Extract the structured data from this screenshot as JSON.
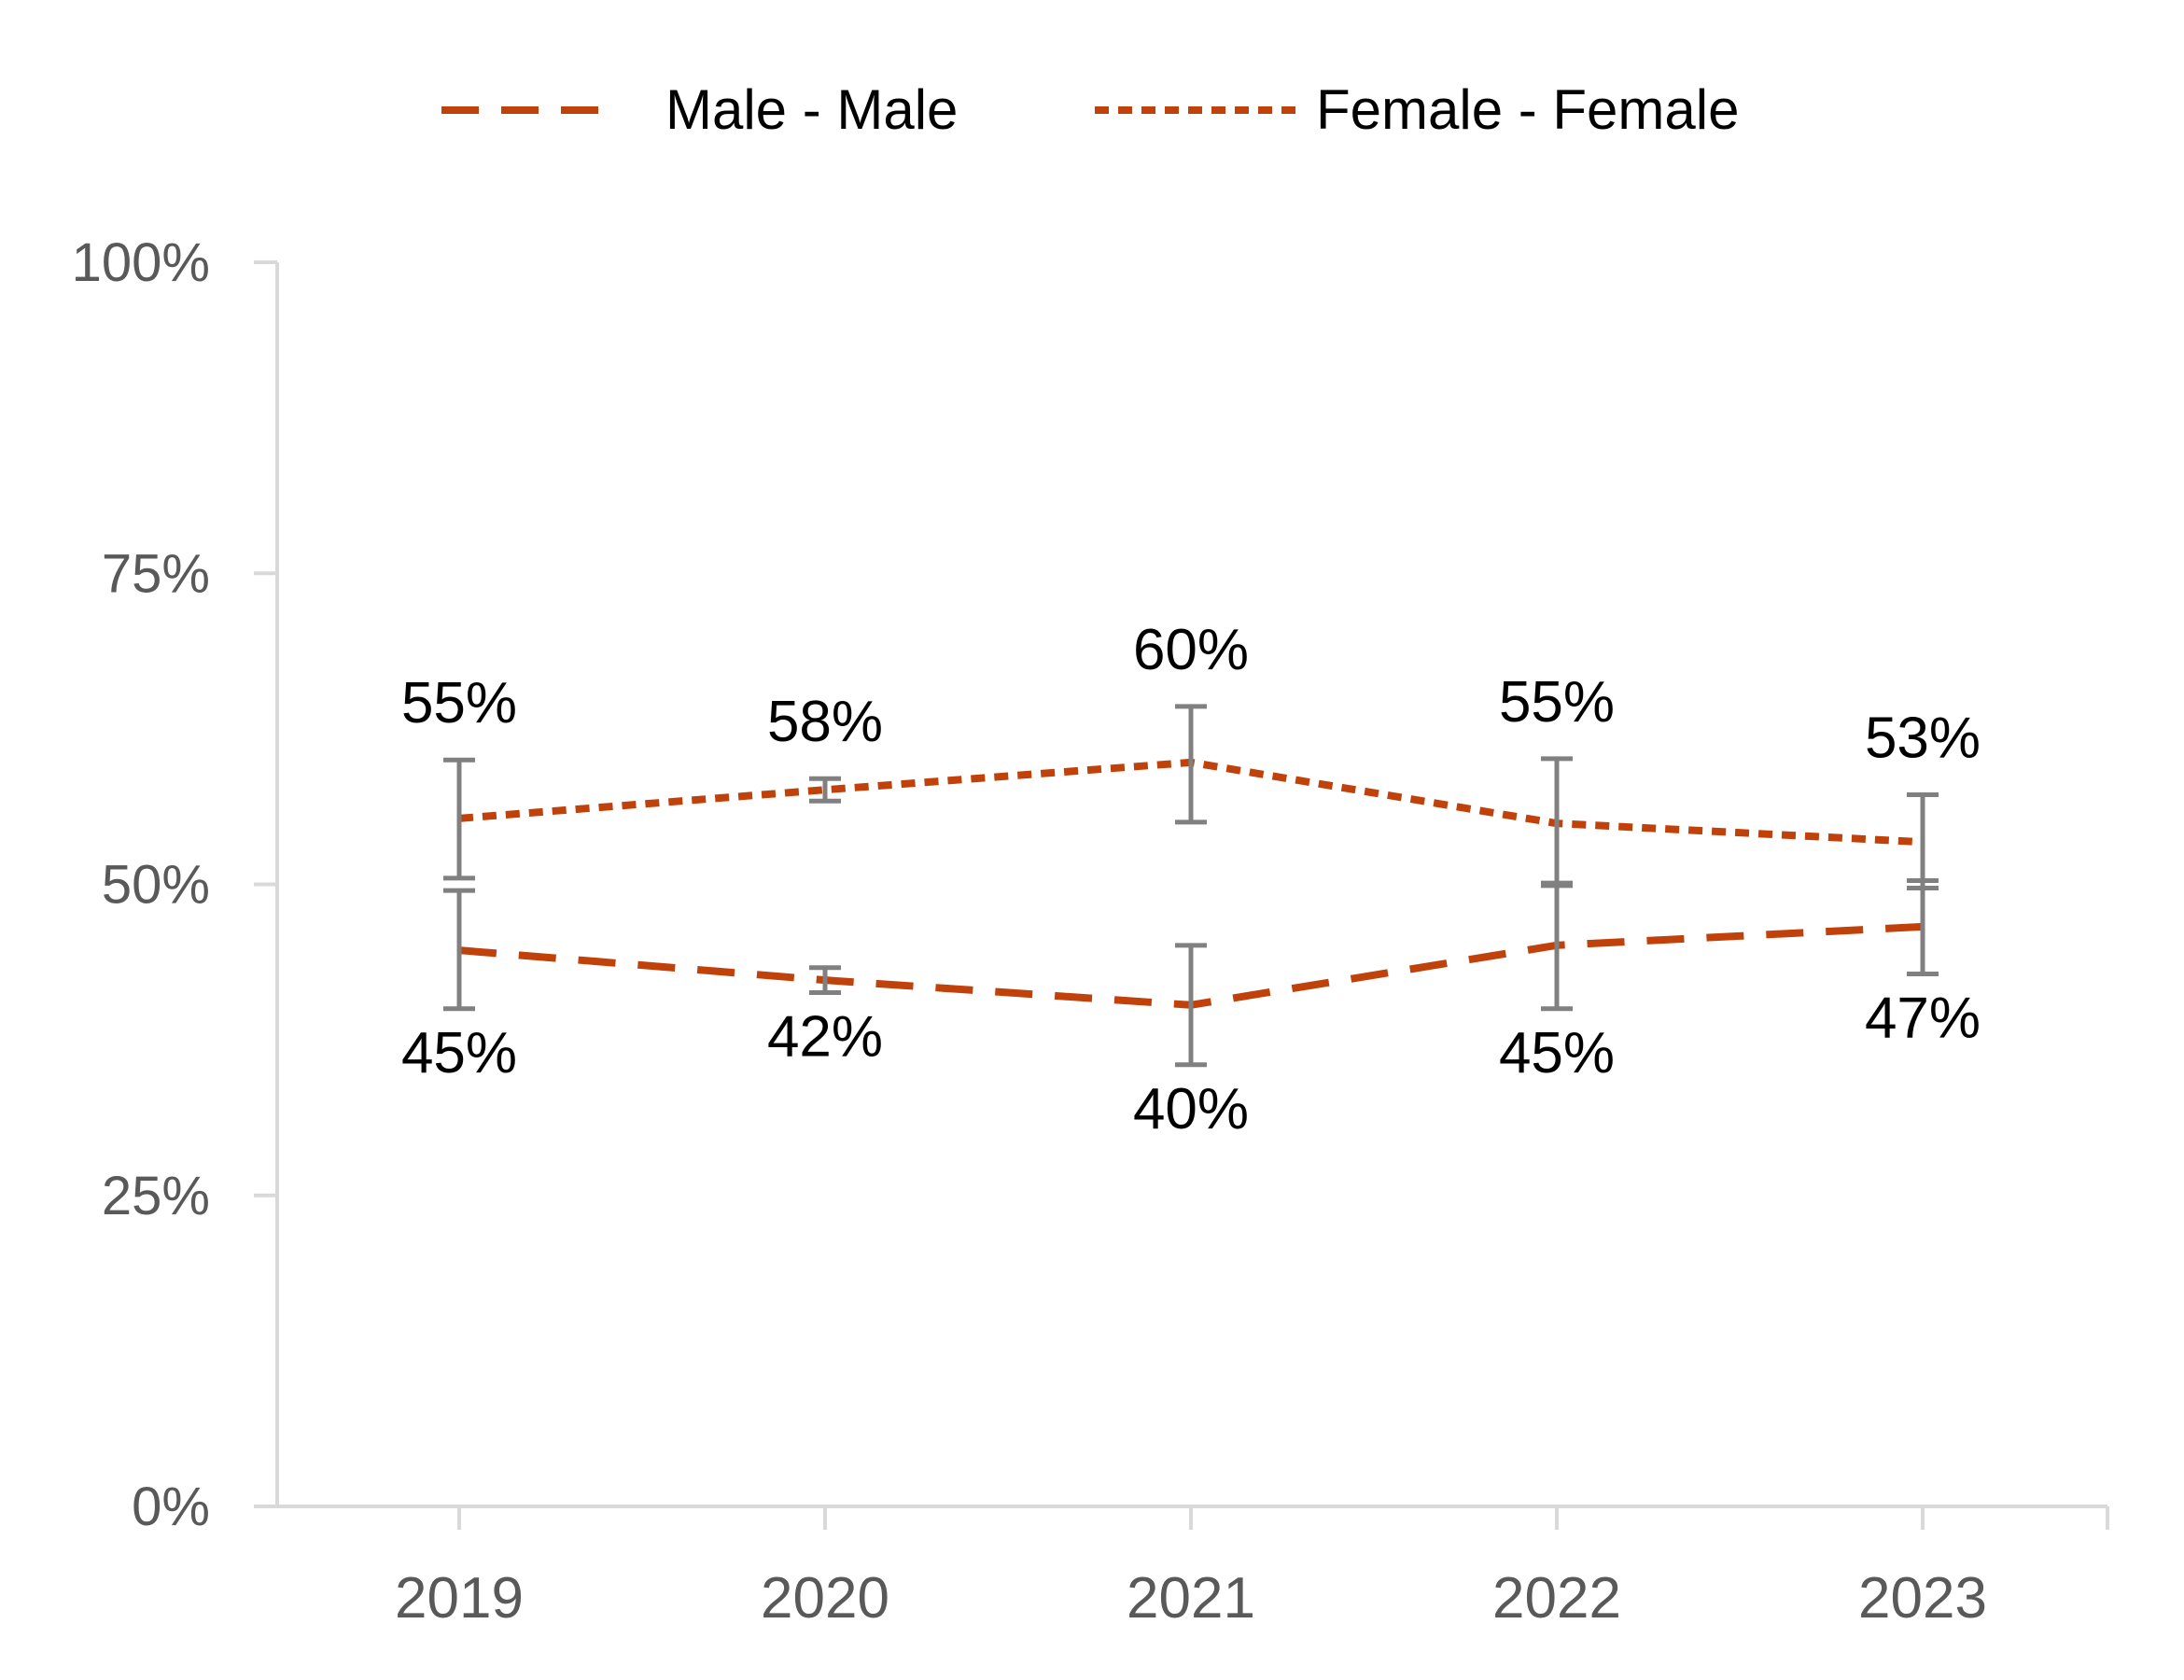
{
  "chart_data": {
    "type": "line",
    "title": "",
    "xlabel": "",
    "ylabel": "",
    "categories": [
      "2019",
      "2020",
      "2021",
      "2022",
      "2023"
    ],
    "ylim": [
      0,
      100
    ],
    "yticks": [
      0,
      25,
      50,
      75,
      100
    ],
    "ytick_labels": [
      "0%",
      "25%",
      "50%",
      "75%",
      "100%"
    ],
    "grid": false,
    "legend_position": "top",
    "series": [
      {
        "name": "Male - Male",
        "line_style": "dashed",
        "color": "#C0410A",
        "values": [
          44.7,
          42.3,
          40.3,
          45.1,
          46.6
        ],
        "labels": [
          "45%",
          "42%",
          "40%",
          "45%",
          "47%"
        ],
        "error_low": [
          40.0,
          41.3,
          35.5,
          40.0,
          42.8
        ],
        "error_high": [
          49.5,
          43.3,
          45.1,
          50.1,
          50.3
        ]
      },
      {
        "name": "Female - Female",
        "line_style": "dotted",
        "color": "#C0410A",
        "values": [
          55.3,
          57.6,
          59.8,
          54.9,
          53.4
        ],
        "labels": [
          "55%",
          "58%",
          "60%",
          "55%",
          "53%"
        ],
        "error_low": [
          50.5,
          56.7,
          55.0,
          49.9,
          49.7
        ],
        "error_high": [
          60.0,
          58.5,
          64.3,
          60.1,
          57.2
        ]
      }
    ],
    "error_bar_color": "#808080",
    "axis_color": "#D9D9D9"
  }
}
